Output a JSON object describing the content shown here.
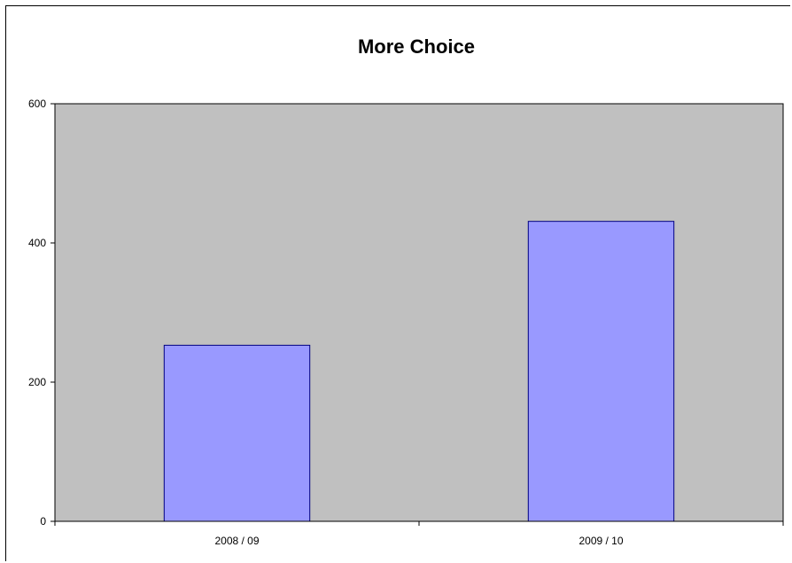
{
  "chart_data": {
    "type": "bar",
    "title": "More Choice",
    "xlabel": "",
    "ylabel": "",
    "categories": [
      "2008 / 09",
      "2009 / 10"
    ],
    "values": [
      253,
      431
    ],
    "ylim": [
      0,
      600
    ],
    "yticks": [
      0,
      200,
      400,
      600
    ],
    "grid": false,
    "legend": "none",
    "colors": {
      "plot_background": "#c0c0c0",
      "bar_fill": "#9999ff",
      "bar_stroke": "#000080",
      "axis": "#000000"
    }
  }
}
